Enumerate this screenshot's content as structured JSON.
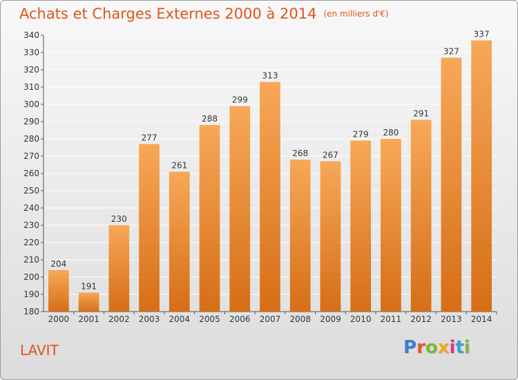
{
  "title": "Achats et Charges Externes 2000 à 2014",
  "subtitle": "(en milliers d'€)",
  "place": "LAVIT",
  "brand": {
    "text": "Proxiti",
    "letter_colors": [
      "#3a7fd0",
      "#e8562a",
      "#7cb83a",
      "#f2a41c",
      "#d83a8a",
      "#3aa0d8",
      "#7cb83a"
    ]
  },
  "colors": {
    "title": "#e0541a",
    "bar_top": "#f7a858",
    "bar_bottom": "#d66e16",
    "grid": "#ffffff",
    "axis_text": "#333333"
  },
  "chart_data": {
    "type": "bar",
    "categories": [
      "2000",
      "2001",
      "2002",
      "2003",
      "2004",
      "2005",
      "2006",
      "2007",
      "2008",
      "2009",
      "2010",
      "2011",
      "2012",
      "2013",
      "2014"
    ],
    "values": [
      204,
      191,
      230,
      277,
      261,
      288,
      299,
      313,
      268,
      267,
      279,
      280,
      291,
      327,
      337
    ],
    "title": "Achats et Charges Externes 2000 à 2014",
    "subtitle": "(en milliers d'€)",
    "xlabel": "",
    "ylabel": "",
    "ylim": [
      180,
      340
    ],
    "yticks": [
      180,
      190,
      200,
      210,
      220,
      230,
      240,
      250,
      260,
      270,
      280,
      290,
      300,
      310,
      320,
      330,
      340
    ],
    "grid": true,
    "legend": "none"
  }
}
